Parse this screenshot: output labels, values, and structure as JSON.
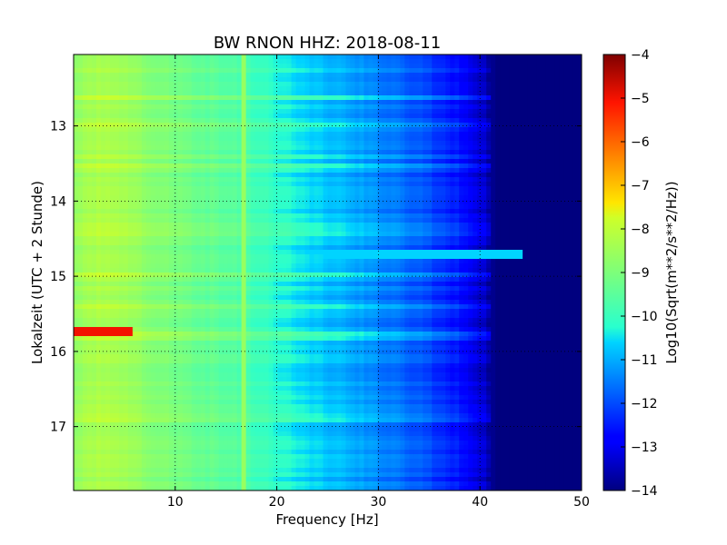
{
  "chart_data": {
    "type": "heatmap",
    "title": "BW RNON HHZ: 2018-08-11",
    "xlabel": "Frequency [Hz]",
    "ylabel": "Lokalzeit (UTC + 2 Stunde)",
    "xlim": [
      0,
      50
    ],
    "ylim": [
      17.85,
      12.05
    ],
    "y_inverted": true,
    "grid": true,
    "x_ticks": [
      10,
      20,
      30,
      40,
      50
    ],
    "y_ticks": [
      13,
      14,
      15,
      16,
      17
    ],
    "colormap": "jet",
    "colorbar": {
      "label": "Log10(Sqrt(m**2/s**2/Hz))",
      "range": [
        -14,
        -4
      ],
      "ticks": [
        -14,
        -13,
        -12,
        -11,
        -10,
        -9,
        -8,
        -7,
        -6,
        -5,
        -4
      ]
    },
    "frequency_profile": [
      [
        0,
        -8.7
      ],
      [
        1,
        -8.5
      ],
      [
        3,
        -8.3
      ],
      [
        5,
        -8.4
      ],
      [
        8,
        -8.9
      ],
      [
        12,
        -9.3
      ],
      [
        16,
        -9.6
      ],
      [
        20,
        -10.2
      ],
      [
        23,
        -10.6
      ],
      [
        27,
        -11.0
      ],
      [
        30,
        -11.4
      ],
      [
        34,
        -11.9
      ],
      [
        37,
        -12.4
      ],
      [
        39,
        -12.9
      ],
      [
        40.5,
        -13.4
      ],
      [
        41.5,
        -14.0
      ],
      [
        50,
        -14.0
      ]
    ],
    "features": [
      {
        "time": 15.72,
        "freq_range": [
          0.2,
          6.0
        ],
        "value": -5.0,
        "description": "strong low-frequency event"
      },
      {
        "time": 14.7,
        "freq_range": [
          0,
          44
        ],
        "value": -10.6,
        "description": "broadband horizontal line"
      },
      {
        "freq": 16.7,
        "value": -8.6,
        "description": "narrow vertical line"
      }
    ]
  }
}
